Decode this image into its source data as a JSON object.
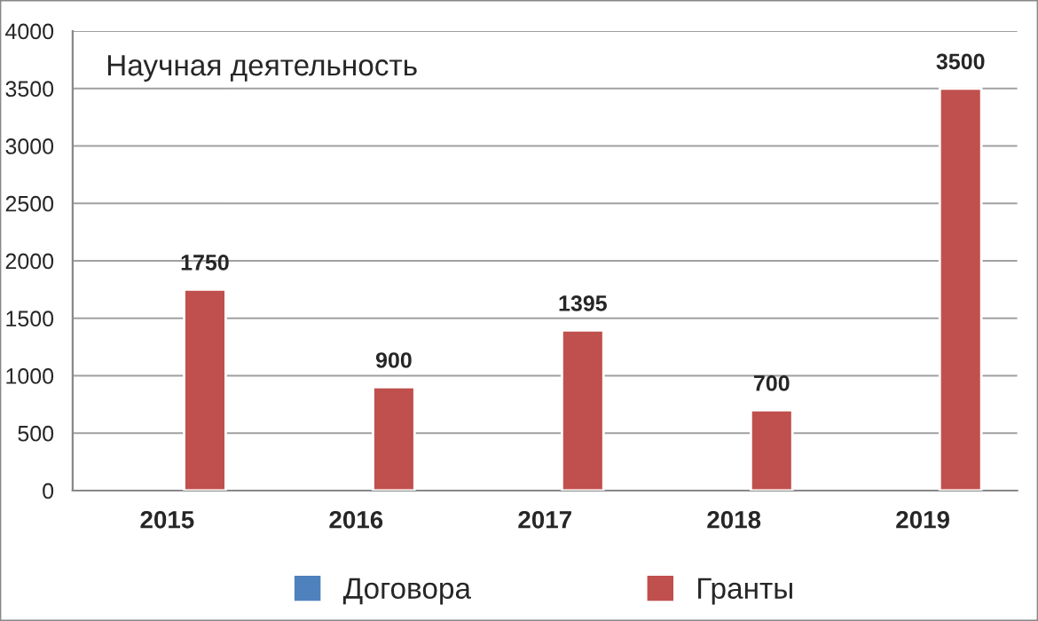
{
  "chart_data": {
    "type": "bar",
    "title": "Научная деятельность",
    "categories": [
      "2015",
      "2016",
      "2017",
      "2018",
      "2019"
    ],
    "series": [
      {
        "name": "Договора",
        "color": "#4f81bd",
        "values": [
          null,
          null,
          null,
          null,
          null
        ]
      },
      {
        "name": "Гранты",
        "color": "#c0504d",
        "values": [
          1750,
          900,
          1395,
          700,
          3500
        ]
      }
    ],
    "ylim": [
      0,
      4000
    ],
    "yticks": [
      0,
      500,
      1000,
      1500,
      2000,
      2500,
      3000,
      3500,
      4000
    ],
    "grid": "y",
    "legend": "bottom",
    "data_labels": true
  }
}
